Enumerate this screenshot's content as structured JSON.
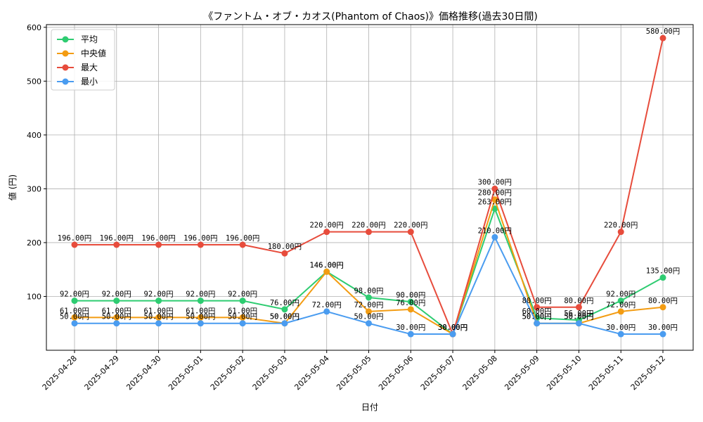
{
  "chart_data": {
    "type": "line",
    "title": "《ファントム・オブ・カオス(Phantom of Chaos)》価格推移(過去30日間)",
    "xlabel": "日付",
    "ylabel": "値 (円)",
    "categories": [
      "2025-04-28",
      "2025-04-29",
      "2025-04-30",
      "2025-05-01",
      "2025-05-02",
      "2025-05-03",
      "2025-05-04",
      "2025-05-05",
      "2025-05-06",
      "2025-05-07",
      "2025-05-08",
      "2025-05-09",
      "2025-05-10",
      "2025-05-11",
      "2025-05-12"
    ],
    "ylim": [
      0,
      605
    ],
    "yticks": [
      100,
      200,
      300,
      400,
      500,
      600
    ],
    "grid": true,
    "legend_position": "top-left",
    "series": [
      {
        "name": "平均",
        "color": "#2ecc71",
        "values": [
          92,
          92,
          92,
          92,
          92,
          76,
          146,
          98,
          90,
          30,
          263,
          60,
          56,
          92,
          135
        ],
        "labels": [
          "92.00円",
          "92.00円",
          "92.00円",
          "92.00円",
          "92.00円",
          "76.00円",
          "146.00円",
          "98.00円",
          "90.00円",
          "30.00円",
          "263.00円",
          "60.00円",
          "56.00円",
          "92.00円",
          "135.00円"
        ]
      },
      {
        "name": "中央値",
        "color": "#f39c12",
        "values": [
          61,
          61,
          61,
          61,
          61,
          50,
          146,
          72,
          76,
          30,
          280,
          50,
          50,
          72,
          80
        ],
        "labels": [
          "61.00円",
          "61.00円",
          "61.00円",
          "61.00円",
          "61.00円",
          "50.00円",
          "146.00円",
          "72.00円",
          "76.00円",
          "30.00円",
          "280.00円",
          "50.00円",
          "50.00円",
          "72.00円",
          "80.00円"
        ]
      },
      {
        "name": "最大",
        "color": "#e74c3c",
        "values": [
          196,
          196,
          196,
          196,
          196,
          180,
          220,
          220,
          220,
          30,
          300,
          80,
          80,
          220,
          580
        ],
        "labels": [
          "196.00円",
          "196.00円",
          "196.00円",
          "196.00円",
          "196.00円",
          "180.00円",
          "220.00円",
          "220.00円",
          "220.00円",
          "30.00円",
          "300.00円",
          "80.00円",
          "80.00円",
          "220.00円",
          "580.00円"
        ]
      },
      {
        "name": "最小",
        "color": "#4a9cf0",
        "values": [
          50,
          50,
          50,
          50,
          50,
          50,
          72,
          50,
          30,
          30,
          210,
          50,
          50,
          30,
          30
        ],
        "labels": [
          "50.00円",
          "50.00円",
          "50.00円",
          "50.00円",
          "50.00円",
          "50.00円",
          "72.00円",
          "50.00円",
          "30.00円",
          "30.00円",
          "210.00円",
          "50.00円",
          "50.00円",
          "30.00円",
          "30.00円"
        ]
      }
    ]
  }
}
